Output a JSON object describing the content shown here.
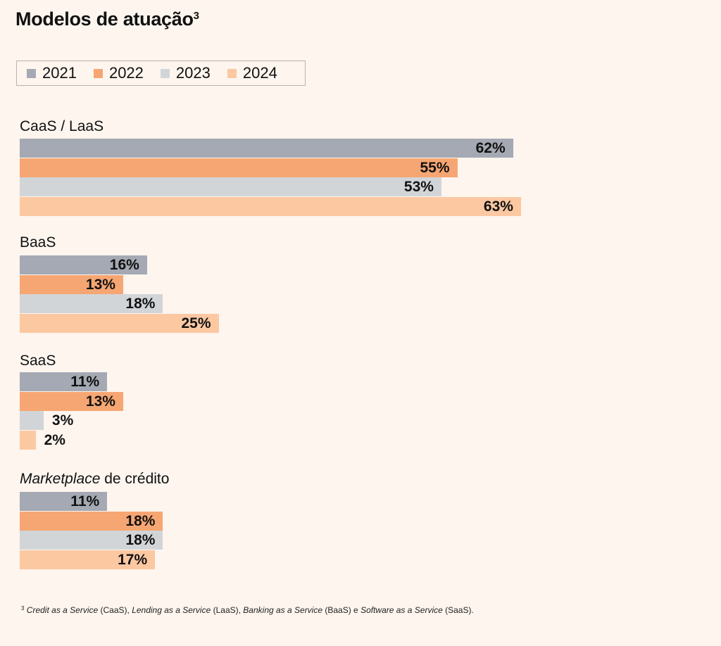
{
  "title": "Modelos de atuação",
  "title_sup": "3",
  "colors": {
    "2021": "#a4a9b3",
    "2022": "#f6a672",
    "2023": "#d2d5d8",
    "2024": "#fcc8a2"
  },
  "chart_data": {
    "type": "bar",
    "orientation": "horizontal",
    "categories": [
      "CaaS / LaaS",
      "BaaS",
      "SaaS",
      "Marketplace de crédito"
    ],
    "series": [
      {
        "name": "2021",
        "values": [
          62,
          16,
          11,
          11
        ]
      },
      {
        "name": "2022",
        "values": [
          55,
          13,
          13,
          18
        ]
      },
      {
        "name": "2023",
        "values": [
          53,
          18,
          3,
          18
        ]
      },
      {
        "name": "2024",
        "values": [
          63,
          25,
          2,
          17
        ]
      }
    ],
    "value_labels": [
      [
        "62%",
        "55%",
        "53%",
        "63%"
      ],
      [
        "16%",
        "13%",
        "18%",
        "25%"
      ],
      [
        "11%",
        "13%",
        "3%",
        "2%"
      ],
      [
        "11%",
        "18%",
        "18%",
        "17%"
      ]
    ],
    "unit": "%",
    "legend_position": "top-left"
  },
  "group_labels": [
    {
      "italic": "",
      "normal": "CaaS / LaaS"
    },
    {
      "italic": "",
      "normal": "BaaS"
    },
    {
      "italic": "",
      "normal": "SaaS"
    },
    {
      "italic": "Marketplace",
      "normal": " de crédito"
    }
  ],
  "footnote": {
    "mark": "3",
    "parts": [
      {
        "text": "Credit as a Service",
        "italic": true
      },
      {
        "text": " (CaaS), ",
        "italic": false
      },
      {
        "text": "Lending as a Service",
        "italic": true
      },
      {
        "text": " (LaaS), ",
        "italic": false
      },
      {
        "text": "Banking as a Service",
        "italic": true
      },
      {
        "text": " (BaaS) e ",
        "italic": false
      },
      {
        "text": "Software as a Service",
        "italic": true
      },
      {
        "text": " (SaaS).",
        "italic": false
      }
    ]
  }
}
